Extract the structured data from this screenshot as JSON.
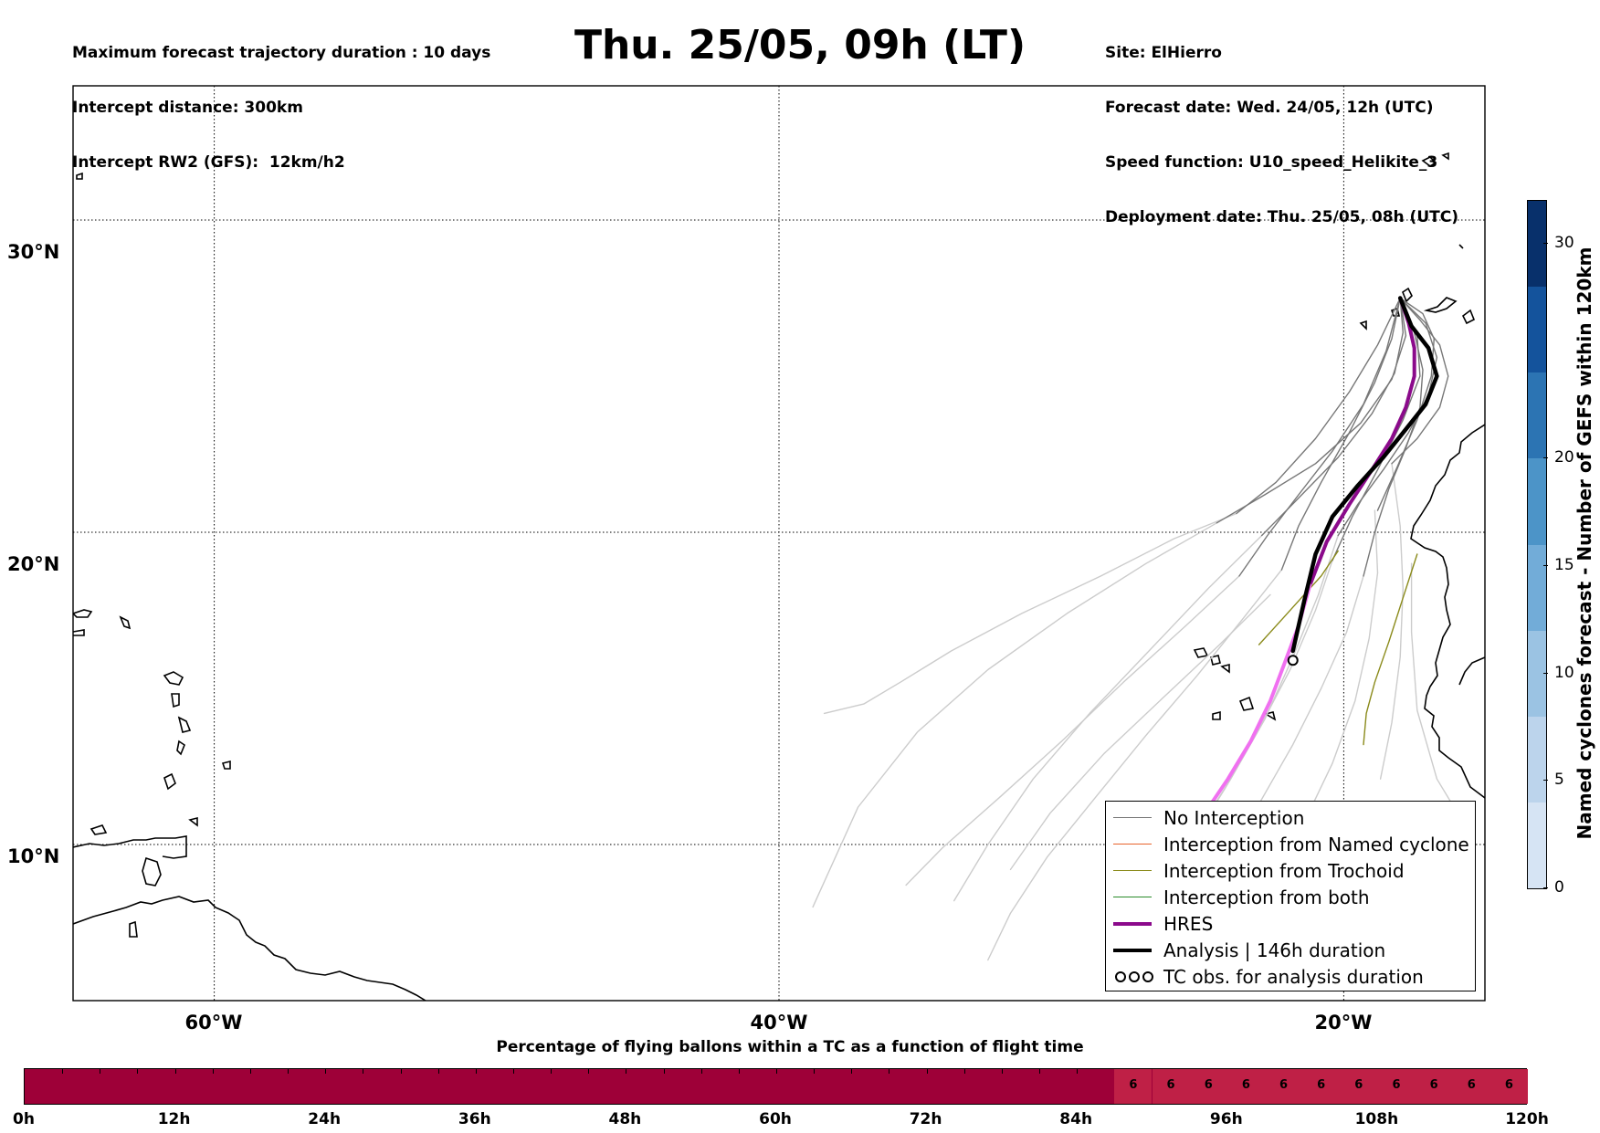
{
  "header": {
    "left_lines": [
      "Maximum forecast trajectory duration : 10 days",
      "Intercept distance: 300km",
      "Intercept RW2 (GFS):  12km/h2"
    ],
    "title": "Thu. 25/05, 09h (LT)",
    "right_lines": [
      "Site: ElHierro",
      "Forecast date: Wed. 24/05, 12h (UTC)",
      "Speed function: U10_speed_Helikite_3",
      "Deployment date: Thu. 25/05, 08h (UTC)"
    ]
  },
  "chart_data": [
    {
      "type": "line",
      "xlim": [
        -65,
        -15
      ],
      "ylim": [
        5,
        34.3
      ],
      "x_ticks": [
        -60,
        -40,
        -20
      ],
      "x_tick_labels": [
        "60°W",
        "40°W",
        "20°W"
      ],
      "y_ticks": [
        10,
        20,
        30
      ],
      "y_tick_labels": [
        "10°N",
        "20°N",
        "30°N"
      ],
      "grid": true,
      "legend_position": "lower-right",
      "legend": [
        {
          "label": "No Interception",
          "color": "#777777"
        },
        {
          "label": "Interception from Named cyclone",
          "color": "#e8642c"
        },
        {
          "label": "Interception from Trochoid",
          "color": "#8a8a1a"
        },
        {
          "label": "Interception from both",
          "color": "#2a8a2a"
        },
        {
          "label": "HRES",
          "color": "#8b0a8b"
        },
        {
          "label": "Analysis | 146h duration",
          "color": "#000000"
        },
        {
          "label": "TC obs. for analysis duration",
          "color": "#000000"
        }
      ],
      "series": [
        {
          "name": "HRES",
          "color": "#8b0a8b",
          "x": [
            -18.0,
            -17.7,
            -17.5,
            -17.5,
            -17.8,
            -18.3,
            -19.0,
            -19.8,
            -20.6,
            -21.2
          ],
          "y": [
            27.5,
            26.7,
            25.9,
            25.0,
            24.0,
            23.0,
            22.0,
            20.9,
            19.7,
            18.3
          ]
        },
        {
          "name": "HRES",
          "color": "#f070f0",
          "x": [
            -21.2,
            -21.6,
            -22.1,
            -22.6,
            -23.3,
            -24.1,
            -25.0,
            -25.8,
            -26.6,
            -27.0
          ],
          "y": [
            18.3,
            17.0,
            15.8,
            14.6,
            13.3,
            12.1,
            10.9,
            9.5,
            8.1,
            7.0
          ]
        },
        {
          "name": "Analysis | 146h duration",
          "color": "#000000",
          "x": [
            -18.0,
            -17.6,
            -17.0,
            -16.7,
            -17.1,
            -17.8,
            -18.6,
            -19.5,
            -20.4,
            -21.0,
            -21.4,
            -21.8
          ],
          "y": [
            27.5,
            26.6,
            25.9,
            25.0,
            24.1,
            23.3,
            22.4,
            21.5,
            20.5,
            19.3,
            17.8,
            16.2
          ]
        },
        {
          "name": "No Interception",
          "color": "#777777",
          "x": [
            -18.0,
            -18.8,
            -19.8,
            -21.0,
            -22.4,
            -23.8
          ],
          "y": [
            27.5,
            26.0,
            24.5,
            23.0,
            21.6,
            20.6
          ]
        },
        {
          "name": "No Interception",
          "color": "#777777",
          "x": [
            -18.0,
            -17.3,
            -16.6,
            -16.3,
            -16.6,
            -17.4,
            -18.3
          ],
          "y": [
            27.5,
            26.8,
            26.0,
            25.0,
            24.0,
            23.0,
            22.2
          ]
        },
        {
          "name": "No Interception",
          "color": "#777777",
          "x": [
            -18.0,
            -17.9,
            -18.2,
            -19.0,
            -20.2,
            -21.7,
            -22.9
          ],
          "y": [
            27.5,
            26.4,
            25.1,
            23.8,
            22.4,
            21.0,
            19.9
          ]
        },
        {
          "name": "No Interception",
          "color": "#777777",
          "x": [
            -18.0,
            -18.3,
            -18.9,
            -19.8,
            -20.8,
            -21.6,
            -22.2
          ],
          "y": [
            27.5,
            26.2,
            24.8,
            23.2,
            21.6,
            20.2,
            18.8
          ]
        },
        {
          "name": "No Interception",
          "color": "#777777",
          "x": [
            -18.0,
            -17.2,
            -16.8,
            -16.9,
            -17.4,
            -18.1,
            -18.8
          ],
          "y": [
            27.5,
            27.0,
            26.2,
            25.0,
            23.6,
            22.1,
            20.7
          ]
        },
        {
          "name": "No Interception",
          "color": "#777777",
          "x": [
            -18.0,
            -18.5,
            -19.3,
            -20.4,
            -21.6,
            -22.7,
            -23.7
          ],
          "y": [
            27.5,
            25.8,
            24.1,
            22.6,
            21.2,
            19.9,
            18.6
          ]
        },
        {
          "name": "No Interception",
          "color": "#777777",
          "x": [
            -18.0,
            -17.5,
            -17.2,
            -17.3,
            -17.8,
            -18.4,
            -18.9,
            -19.3
          ],
          "y": [
            27.5,
            26.4,
            25.2,
            24.0,
            22.7,
            21.4,
            20.0,
            18.6
          ]
        },
        {
          "name": "No Interception",
          "color": "#777777",
          "x": [
            -18.0,
            -17.8,
            -18.3,
            -19.4,
            -21.0,
            -22.8,
            -24.5
          ],
          "y": [
            27.5,
            26.3,
            24.9,
            23.5,
            22.2,
            21.2,
            20.3
          ]
        },
        {
          "name": "No Interception",
          "color": "#777777",
          "x": [
            -18.0,
            -17.4,
            -17.3,
            -17.9,
            -18.8,
            -19.7,
            -20.4
          ],
          "y": [
            27.5,
            26.3,
            25.0,
            23.6,
            22.0,
            20.5,
            19.1
          ]
        },
        {
          "name": "No Interception",
          "color": "#777777",
          "x": [
            -18.0,
            -17.1,
            -16.7,
            -17.0,
            -17.7,
            -18.6,
            -19.5,
            -20.2
          ],
          "y": [
            27.5,
            26.7,
            25.6,
            24.4,
            23.2,
            22.0,
            20.9,
            19.9
          ]
        },
        {
          "name": "No Interception",
          "color": "#cccccc",
          "x": [
            -23.8,
            -26.0,
            -28.6,
            -31.4,
            -33.9,
            -35.7,
            -37.0,
            -38.4
          ],
          "y": [
            20.6,
            19.8,
            18.6,
            17.4,
            16.2,
            15.2,
            14.5,
            14.2
          ]
        },
        {
          "name": "No Interception",
          "color": "#cccccc",
          "x": [
            -24.5,
            -27.0,
            -29.8,
            -32.6,
            -35.1,
            -37.2,
            -38.8
          ],
          "y": [
            20.3,
            19.0,
            17.4,
            15.6,
            13.6,
            11.2,
            8.0
          ]
        },
        {
          "name": "No Interception",
          "color": "#cccccc",
          "x": [
            -22.9,
            -24.8,
            -26.9,
            -29.0,
            -31.0,
            -32.6,
            -33.8
          ],
          "y": [
            19.9,
            18.2,
            16.2,
            14.2,
            12.1,
            10.0,
            8.2
          ]
        },
        {
          "name": "No Interception",
          "color": "#cccccc",
          "x": [
            -22.2,
            -23.6,
            -25.2,
            -27.0,
            -28.8,
            -30.5,
            -31.8,
            -32.6
          ],
          "y": [
            18.8,
            17.2,
            15.4,
            13.5,
            11.5,
            9.6,
            7.8,
            6.3
          ]
        },
        {
          "name": "No Interception",
          "color": "#cccccc",
          "x": [
            -23.7,
            -25.6,
            -27.8,
            -30.0,
            -32.2,
            -34.2,
            -35.5
          ],
          "y": [
            18.6,
            17.0,
            15.2,
            13.3,
            11.5,
            9.9,
            8.7
          ]
        },
        {
          "name": "No Interception",
          "color": "#cccccc",
          "x": [
            -19.3,
            -19.9,
            -20.8,
            -21.8,
            -23.0,
            -24.2,
            -25.3,
            -26.2
          ],
          "y": [
            18.6,
            16.8,
            15.0,
            13.2,
            11.3,
            9.4,
            7.6,
            6.0
          ]
        },
        {
          "name": "No Interception",
          "color": "#cccccc",
          "x": [
            -18.3,
            -18.0,
            -17.9,
            -18.0,
            -18.3,
            -18.7
          ],
          "y": [
            22.2,
            20.2,
            18.2,
            16.0,
            13.9,
            12.1
          ]
        },
        {
          "name": "No Interception",
          "color": "#cccccc",
          "x": [
            -20.4,
            -21.0,
            -21.9,
            -23.0,
            -24.2,
            -25.5,
            -26.6
          ],
          "y": [
            19.1,
            17.5,
            15.6,
            13.7,
            11.8,
            9.9,
            8.2
          ]
        },
        {
          "name": "No Interception",
          "color": "#cccccc",
          "x": [
            -18.9,
            -18.8,
            -19.1,
            -19.6,
            -20.4,
            -21.3,
            -22.2
          ],
          "y": [
            20.7,
            18.7,
            16.6,
            14.6,
            12.6,
            10.9,
            9.6
          ]
        },
        {
          "name": "No Interception",
          "color": "#cccccc",
          "x": [
            -20.2,
            -20.9,
            -21.8,
            -22.8,
            -24.0,
            -25.2,
            -26.4
          ],
          "y": [
            19.9,
            18.0,
            16.0,
            14.0,
            12.1,
            10.4,
            9.0
          ]
        },
        {
          "name": "No Interception",
          "color": "#cccccc",
          "x": [
            -22.6,
            -24.4,
            -26.4,
            -28.5,
            -30.4,
            -31.8
          ],
          "y": [
            18.0,
            16.4,
            14.7,
            12.9,
            11.0,
            9.2
          ]
        },
        {
          "name": "No Interception",
          "color": "#cccccc",
          "x": [
            -17.6,
            -17.6,
            -17.4,
            -16.7,
            -15.7
          ],
          "y": [
            19.0,
            16.8,
            14.3,
            12.1,
            10.6
          ]
        },
        {
          "name": "Interception from Trochoid",
          "color": "#8a8a1a",
          "x": [
            -17.4,
            -17.9,
            -18.4,
            -18.9,
            -19.2,
            -19.3
          ],
          "y": [
            19.3,
            17.9,
            16.5,
            15.2,
            14.2,
            13.2
          ]
        },
        {
          "name": "Interception from Trochoid",
          "color": "#8a8a1a",
          "x": [
            -20.2,
            -20.8,
            -21.5,
            -22.2,
            -23.0
          ],
          "y": [
            19.4,
            18.6,
            17.9,
            17.2,
            16.4
          ]
        }
      ],
      "tc_obs_points": [
        {
          "x": -21.8,
          "y": 15.9
        }
      ]
    },
    {
      "type": "heatmap",
      "title": "Named cyclones forecast - Number of GEFS within 120km",
      "range": [
        0,
        32
      ],
      "ticks": [
        0,
        5,
        10,
        15,
        20,
        30
      ],
      "tick_labels": [
        "0",
        "5",
        "10",
        "15",
        "20",
        "30"
      ],
      "colors": [
        "#d6e4f4",
        "#bcd4ec",
        "#9bc3e3",
        "#72acd8",
        "#4c94c8",
        "#2c74b3",
        "#14539c",
        "#08306b"
      ]
    },
    {
      "type": "bar",
      "title": "Percentage of flying ballons within a TC as a function of flight time",
      "x_ticks_hours": [
        0,
        12,
        24,
        36,
        48,
        60,
        72,
        84,
        96,
        108,
        120
      ],
      "x_tick_labels": [
        "0h",
        "12h",
        "24h",
        "36h",
        "48h",
        "60h",
        "72h",
        "84h",
        "96h",
        "108h",
        "120h"
      ],
      "segments_start_hours": [
        87,
        90,
        93,
        96,
        99,
        102,
        105,
        108,
        111,
        114,
        117
      ],
      "segments_end_hours": [
        90,
        93,
        96,
        99,
        102,
        105,
        108,
        111,
        114,
        117,
        120
      ],
      "segment_values": [
        6,
        6,
        6,
        6,
        6,
        6,
        6,
        6,
        6,
        6,
        6
      ],
      "segment_labels": [
        "6",
        "6",
        "6",
        "6",
        "6",
        "6",
        "6",
        "6",
        "6",
        "6",
        "6"
      ],
      "base_color": "#9e0038",
      "segment_color": "#bf2046"
    }
  ]
}
